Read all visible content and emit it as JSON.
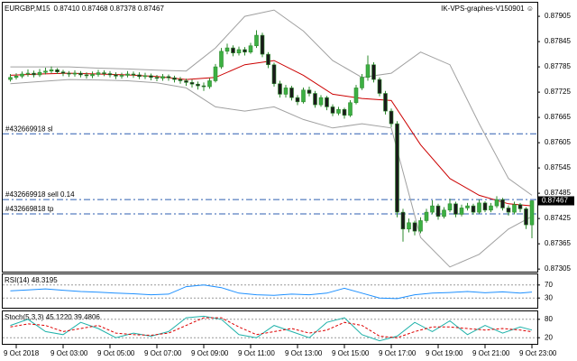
{
  "chart_data": [
    {
      "type": "candlestick",
      "title": "EURGBP,M15",
      "subtitle": "0.87410 0.87468 0.87378 0.87467",
      "annotation": "IK-VPS-graphes-V150901 ☺",
      "categories": [
        null,
        "9 Oct 2018",
        null,
        null,
        null,
        null,
        null,
        null,
        null,
        "9 Oct 03:00",
        null,
        null,
        null,
        null,
        null,
        null,
        null,
        "9 Oct 05:00",
        null,
        null,
        null,
        null,
        null,
        null,
        null,
        "9 Oct 07:00",
        null,
        null,
        null,
        null,
        null,
        null,
        null,
        "9 Oct 09:00",
        null,
        null,
        null,
        null,
        null,
        null,
        null,
        "9 Oct 11:00",
        null,
        null,
        null,
        null,
        null,
        null,
        null,
        "9 Oct 13:00",
        null,
        null,
        null,
        null,
        null,
        null,
        null,
        "9 Oct 15:00",
        null,
        null,
        null,
        null,
        null,
        null,
        null,
        "9 Oct 17:00",
        null,
        null,
        null,
        null,
        null,
        null,
        null,
        "9 Oct 19:00",
        null,
        null,
        null,
        null,
        null,
        null,
        null,
        "9 Oct 21:00",
        null,
        null,
        null,
        null,
        null,
        null,
        null,
        "9 Oct 23:00"
      ],
      "ohlc": [
        [
          0.87755,
          0.87768,
          0.8775,
          0.8776
        ],
        [
          0.8776,
          0.8777,
          0.87755,
          0.87763
        ],
        [
          0.87763,
          0.87774,
          0.87758,
          0.87768
        ],
        [
          0.87768,
          0.87779,
          0.87762,
          0.8777
        ],
        [
          0.8777,
          0.87776,
          0.8776,
          0.87766
        ],
        [
          0.87766,
          0.8778,
          0.87761,
          0.87772
        ],
        [
          0.87772,
          0.87783,
          0.87767,
          0.87775
        ],
        [
          0.87775,
          0.87786,
          0.8777,
          0.87778
        ],
        [
          0.87778,
          0.87782,
          0.87768,
          0.87773
        ],
        [
          0.87773,
          0.87778,
          0.87763,
          0.8777
        ],
        [
          0.8777,
          0.87775,
          0.87761,
          0.87768
        ],
        [
          0.87768,
          0.87777,
          0.87762,
          0.8777
        ],
        [
          0.8777,
          0.87775,
          0.8776,
          0.87766
        ],
        [
          0.87766,
          0.87772,
          0.87757,
          0.87764
        ],
        [
          0.87764,
          0.87774,
          0.87758,
          0.87767
        ],
        [
          0.87767,
          0.87778,
          0.87762,
          0.87771
        ],
        [
          0.87771,
          0.87777,
          0.87763,
          0.87769
        ],
        [
          0.87769,
          0.87775,
          0.8776,
          0.87766
        ],
        [
          0.87766,
          0.87772,
          0.87756,
          0.87763
        ],
        [
          0.87763,
          0.87771,
          0.87757,
          0.87765
        ],
        [
          0.87765,
          0.87775,
          0.8776,
          0.87768
        ],
        [
          0.87768,
          0.87774,
          0.87759,
          0.87766
        ],
        [
          0.87766,
          0.87772,
          0.87756,
          0.87762
        ],
        [
          0.87762,
          0.87771,
          0.87756,
          0.87764
        ],
        [
          0.87764,
          0.87769,
          0.87753,
          0.8776
        ],
        [
          0.8776,
          0.87766,
          0.87751,
          0.87758
        ],
        [
          0.87758,
          0.87768,
          0.87752,
          0.87762
        ],
        [
          0.87762,
          0.87767,
          0.87752,
          0.87759
        ],
        [
          0.87759,
          0.87764,
          0.87748,
          0.87755
        ],
        [
          0.87755,
          0.87761,
          0.87745,
          0.87752
        ],
        [
          0.87752,
          0.87757,
          0.8774,
          0.87748
        ],
        [
          0.87748,
          0.87755,
          0.87736,
          0.87744
        ],
        [
          0.87744,
          0.8775,
          0.87731,
          0.8774
        ],
        [
          0.8774,
          0.87748,
          0.87728,
          0.87738
        ],
        [
          0.87738,
          0.87758,
          0.87733,
          0.87752
        ],
        [
          0.87752,
          0.87792,
          0.87748,
          0.87785
        ],
        [
          0.87785,
          0.8783,
          0.8778,
          0.87822
        ],
        [
          0.87822,
          0.8784,
          0.87815,
          0.8783
        ],
        [
          0.8783,
          0.87836,
          0.8781,
          0.87818
        ],
        [
          0.87818,
          0.87833,
          0.87812,
          0.87826
        ],
        [
          0.87826,
          0.87832,
          0.87812,
          0.8782
        ],
        [
          0.8782,
          0.87842,
          0.87816,
          0.87835
        ],
        [
          0.87835,
          0.87872,
          0.8783,
          0.8786
        ],
        [
          0.8786,
          0.87866,
          0.87808,
          0.87815
        ],
        [
          0.87815,
          0.8782,
          0.87782,
          0.8779
        ],
        [
          0.8779,
          0.87795,
          0.87738,
          0.87745
        ],
        [
          0.87745,
          0.87752,
          0.87712,
          0.8772
        ],
        [
          0.8772,
          0.87742,
          0.87712,
          0.87735
        ],
        [
          0.87735,
          0.8774,
          0.87705,
          0.87712
        ],
        [
          0.87712,
          0.87718,
          0.87694,
          0.87702
        ],
        [
          0.87702,
          0.87736,
          0.87698,
          0.8773
        ],
        [
          0.8773,
          0.87738,
          0.87715,
          0.87722
        ],
        [
          0.87722,
          0.87728,
          0.87688,
          0.87695
        ],
        [
          0.87695,
          0.87718,
          0.8769,
          0.87712
        ],
        [
          0.87712,
          0.87716,
          0.87682,
          0.8769
        ],
        [
          0.8769,
          0.87696,
          0.87668,
          0.87675
        ],
        [
          0.87675,
          0.8769,
          0.8767,
          0.87684
        ],
        [
          0.87684,
          0.87688,
          0.87662,
          0.8767
        ],
        [
          0.8767,
          0.87706,
          0.87666,
          0.877
        ],
        [
          0.877,
          0.87742,
          0.87696,
          0.87735
        ],
        [
          0.87735,
          0.87768,
          0.8773,
          0.8776
        ],
        [
          0.8776,
          0.87812,
          0.87752,
          0.8779
        ],
        [
          0.8779,
          0.87796,
          0.87748,
          0.87755
        ],
        [
          0.87755,
          0.8776,
          0.87715,
          0.87722
        ],
        [
          0.87722,
          0.87728,
          0.87672,
          0.8768
        ],
        [
          0.8768,
          0.87686,
          0.87642,
          0.8765
        ],
        [
          0.8765,
          0.87656,
          0.87428,
          0.8744
        ],
        [
          0.8744,
          0.87448,
          0.8737,
          0.874
        ],
        [
          0.874,
          0.87425,
          0.87392,
          0.87415
        ],
        [
          0.87415,
          0.8742,
          0.87385,
          0.87395
        ],
        [
          0.87395,
          0.87428,
          0.8739,
          0.8742
        ],
        [
          0.8742,
          0.87448,
          0.87415,
          0.8744
        ],
        [
          0.8744,
          0.87468,
          0.87435,
          0.87455
        ],
        [
          0.87455,
          0.8746,
          0.87422,
          0.8743
        ],
        [
          0.8743,
          0.87452,
          0.87425,
          0.87445
        ],
        [
          0.87445,
          0.87472,
          0.8744,
          0.8746
        ],
        [
          0.8746,
          0.87465,
          0.87428,
          0.87435
        ],
        [
          0.87435,
          0.87458,
          0.8743,
          0.8745
        ],
        [
          0.8745,
          0.87462,
          0.87444,
          0.87455
        ],
        [
          0.87455,
          0.8746,
          0.87434,
          0.8744
        ],
        [
          0.8744,
          0.8747,
          0.87436,
          0.87462
        ],
        [
          0.87462,
          0.87466,
          0.8744,
          0.87445
        ],
        [
          0.87445,
          0.87462,
          0.8744,
          0.87455
        ],
        [
          0.87455,
          0.87478,
          0.8745,
          0.8747
        ],
        [
          0.8747,
          0.87474,
          0.87444,
          0.8745
        ],
        [
          0.8745,
          0.87456,
          0.87432,
          0.8744
        ],
        [
          0.8744,
          0.87465,
          0.87435,
          0.87458
        ],
        [
          0.87458,
          0.87462,
          0.8744,
          0.87448
        ],
        [
          0.87448,
          0.87452,
          0.874,
          0.8741
        ],
        [
          0.8741,
          0.87468,
          0.87378,
          0.87467
        ]
      ],
      "up_color": "#3cb043",
      "down_color": "#1a1a1a",
      "wick_color": "#2e8b2e",
      "lines": [
        {
          "color": "#a0a0a0",
          "x": [
            0,
            5,
            10,
            15,
            20,
            25,
            30,
            35,
            40,
            45,
            50,
            55,
            60,
            65,
            70,
            75,
            80,
            85,
            89
          ],
          "values": [
            0.87785,
            0.87785,
            0.87785,
            0.87782,
            0.8778,
            0.87777,
            0.87775,
            0.8783,
            0.87905,
            0.8792,
            0.8787,
            0.878,
            0.8776,
            0.8777,
            0.8782,
            0.8779,
            0.8765,
            0.8752,
            0.8748
          ]
        },
        {
          "color": "#cc0000",
          "x": [
            0,
            5,
            10,
            15,
            20,
            25,
            30,
            35,
            40,
            45,
            50,
            55,
            60,
            65,
            70,
            75,
            80,
            85,
            89
          ],
          "values": [
            0.87765,
            0.87768,
            0.8777,
            0.87768,
            0.87766,
            0.87762,
            0.87755,
            0.8776,
            0.8779,
            0.878,
            0.87765,
            0.8772,
            0.8771,
            0.87705,
            0.876,
            0.8752,
            0.8748,
            0.8746,
            0.87455
          ]
        },
        {
          "color": "#a0a0a0",
          "x": [
            0,
            5,
            10,
            15,
            20,
            25,
            30,
            35,
            40,
            45,
            50,
            55,
            60,
            65,
            70,
            75,
            80,
            85,
            89
          ],
          "values": [
            0.87745,
            0.8775,
            0.87755,
            0.87754,
            0.87752,
            0.87747,
            0.87735,
            0.8769,
            0.8768,
            0.8769,
            0.8766,
            0.8764,
            0.8765,
            0.8764,
            0.8738,
            0.8731,
            0.8734,
            0.874,
            0.8743
          ]
        }
      ],
      "levels": [
        {
          "label": "#432669918 sl",
          "value": 0.87626
        },
        {
          "label": "#432669918 sell 0.14",
          "value": 0.8747
        },
        {
          "label": "#432669818 tp",
          "value": 0.87436
        }
      ],
      "level_color": "#2f5fb0",
      "last_price": 0.87467,
      "ylim": [
        0.87301,
        0.87933
      ],
      "yticks": [
        0.87905,
        0.87845,
        0.87785,
        0.87725,
        0.87665,
        0.87605,
        0.87545,
        0.87485,
        0.87425,
        0.87365,
        0.87305
      ]
    },
    {
      "type": "line",
      "title": "RSI(14) 48.3195",
      "series": [
        {
          "color": "#1e90ff",
          "x": [
            0,
            3,
            6,
            9,
            12,
            15,
            18,
            21,
            24,
            27,
            30,
            33,
            36,
            39,
            42,
            45,
            48,
            51,
            54,
            57,
            60,
            63,
            66,
            69,
            72,
            75,
            78,
            81,
            84,
            87,
            89
          ],
          "values": [
            52,
            55,
            58,
            54,
            50,
            48,
            45,
            43,
            40,
            42,
            65,
            70,
            62,
            45,
            40,
            38,
            42,
            40,
            45,
            60,
            45,
            30,
            28,
            40,
            45,
            47,
            50,
            46,
            49,
            45,
            48.3195
          ]
        }
      ],
      "ylim": [
        0,
        100
      ],
      "yticks": [
        70,
        30
      ]
    },
    {
      "type": "line",
      "title": "Stoch(5,3,3) 45.1220 39.4806",
      "series": [
        {
          "color": "#20b2aa",
          "x": [
            0,
            3,
            6,
            9,
            12,
            15,
            18,
            21,
            24,
            27,
            30,
            33,
            36,
            39,
            42,
            45,
            48,
            51,
            54,
            57,
            60,
            63,
            66,
            69,
            72,
            75,
            78,
            81,
            84,
            87,
            89
          ],
          "values": [
            60,
            80,
            40,
            30,
            70,
            50,
            20,
            35,
            25,
            40,
            85,
            90,
            80,
            30,
            20,
            60,
            40,
            20,
            70,
            85,
            30,
            10,
            25,
            70,
            40,
            75,
            30,
            60,
            35,
            55,
            45.122
          ]
        },
        {
          "color": "#dd0000",
          "dashed": true,
          "x": [
            0,
            3,
            6,
            9,
            12,
            15,
            18,
            21,
            24,
            27,
            30,
            33,
            36,
            39,
            42,
            45,
            48,
            51,
            54,
            57,
            60,
            63,
            66,
            69,
            72,
            75,
            78,
            81,
            84,
            87,
            89
          ],
          "values": [
            55,
            65,
            60,
            40,
            50,
            60,
            35,
            30,
            28,
            35,
            60,
            85,
            85,
            55,
            30,
            40,
            50,
            35,
            45,
            70,
            60,
            25,
            20,
            40,
            55,
            55,
            50,
            45,
            50,
            45,
            39.4806
          ]
        }
      ],
      "ylim": [
        0,
        100
      ],
      "yticks": [
        80,
        20
      ]
    }
  ]
}
